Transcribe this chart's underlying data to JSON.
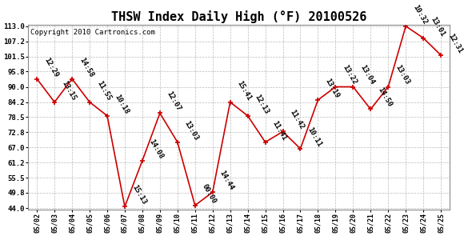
{
  "title": "THSW Index Daily High (°F) 20100526",
  "copyright": "Copyright 2010 Cartronics.com",
  "x_labels": [
    "05/02",
    "05/03",
    "05/04",
    "05/05",
    "05/06",
    "05/07",
    "05/08",
    "05/09",
    "05/10",
    "05/11",
    "05/12",
    "05/13",
    "05/14",
    "05/15",
    "05/16",
    "05/17",
    "05/18",
    "05/19",
    "05/20",
    "05/21",
    "05/22",
    "05/23",
    "05/24",
    "05/25"
  ],
  "y_values": [
    93.0,
    84.2,
    93.0,
    84.2,
    79.0,
    44.5,
    62.0,
    80.0,
    69.0,
    45.0,
    50.0,
    84.2,
    79.0,
    69.0,
    73.0,
    66.5,
    85.0,
    90.0,
    90.0,
    81.5,
    90.0,
    113.0,
    108.5,
    102.0
  ],
  "point_labels": [
    "12:29",
    "13:15",
    "14:58",
    "11:55",
    "10:18",
    "15:13",
    "14:08",
    "12:07",
    "13:03",
    "00:00",
    "14:44",
    "15:41",
    "12:13",
    "11:41",
    "11:42",
    "10:11",
    "13:19",
    "13:22",
    "13:04",
    "14:50",
    "13:03",
    "10:32",
    "13:01",
    "12:31"
  ],
  "line_color": "#cc0000",
  "marker_color": "#cc0000",
  "bg_color": "#ffffff",
  "grid_color": "#bbbbbb",
  "title_fontsize": 11,
  "label_fontsize": 6.5,
  "copyright_fontsize": 6.5,
  "ylim": [
    44.0,
    113.0
  ],
  "yticks": [
    44.0,
    49.8,
    55.5,
    61.2,
    67.0,
    72.8,
    78.5,
    84.2,
    90.0,
    95.8,
    101.5,
    107.2,
    113.0
  ]
}
